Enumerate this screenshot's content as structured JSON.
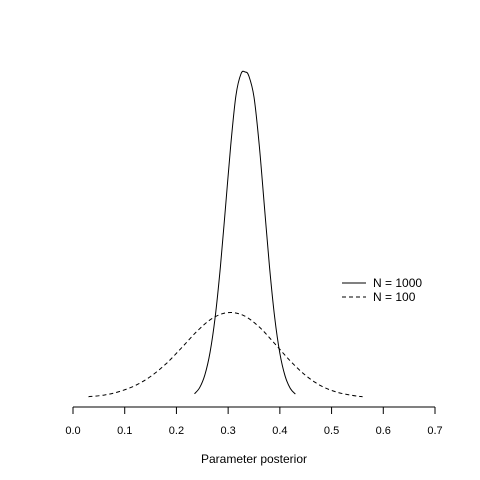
{
  "chart_data": {
    "type": "line",
    "xlabel": "Parameter posterior",
    "ylabel": "",
    "xlim": [
      0.0,
      0.7
    ],
    "x_ticks": [
      "0.0",
      "0.1",
      "0.2",
      "0.3",
      "0.4",
      "0.5",
      "0.6",
      "0.7"
    ],
    "x_tick_values": [
      0.0,
      0.1,
      0.2,
      0.3,
      0.4,
      0.5,
      0.6,
      0.7
    ],
    "y_axis_shown": false,
    "grid": false,
    "legend_position": "right",
    "series": [
      {
        "name": "N = 1000",
        "line_style": "solid",
        "color": "#000000",
        "x": [
          0.235,
          0.245,
          0.255,
          0.265,
          0.275,
          0.285,
          0.295,
          0.305,
          0.315,
          0.325,
          0.333,
          0.34,
          0.35,
          0.36,
          0.37,
          0.38,
          0.39,
          0.4,
          0.41,
          0.42,
          0.43
        ],
        "y": [
          0.013,
          0.032,
          0.071,
          0.14,
          0.249,
          0.402,
          0.587,
          0.775,
          0.927,
          0.995,
          1.0,
          0.988,
          0.923,
          0.778,
          0.59,
          0.402,
          0.247,
          0.137,
          0.068,
          0.03,
          0.012
        ]
      },
      {
        "name": "N = 100",
        "line_style": "dashed",
        "color": "#000000",
        "x": [
          0.03,
          0.06,
          0.09,
          0.12,
          0.15,
          0.18,
          0.21,
          0.24,
          0.27,
          0.3,
          0.33,
          0.36,
          0.39,
          0.42,
          0.45,
          0.48,
          0.51,
          0.54,
          0.56
        ],
        "y": [
          0.004,
          0.009,
          0.02,
          0.038,
          0.066,
          0.105,
          0.154,
          0.205,
          0.245,
          0.262,
          0.253,
          0.218,
          0.167,
          0.114,
          0.069,
          0.037,
          0.018,
          0.008,
          0.004
        ]
      }
    ]
  }
}
